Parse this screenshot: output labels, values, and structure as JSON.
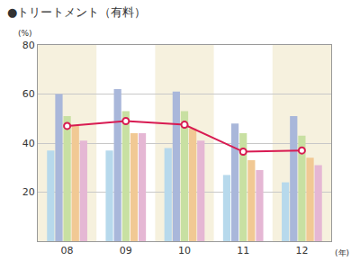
{
  "chart_data": {
    "type": "bar",
    "title": "●トリートメント（有料）",
    "ylabel": "(%)",
    "xlabel": "(年)",
    "categories": [
      "08",
      "09",
      "10",
      "11",
      "12"
    ],
    "series": [
      {
        "type": "bar",
        "color": "#b7d9ec",
        "values": [
          37,
          37,
          38,
          27,
          24
        ]
      },
      {
        "type": "bar",
        "color": "#a9b7da",
        "values": [
          60,
          62,
          61,
          48,
          51
        ]
      },
      {
        "type": "bar",
        "color": "#c8e0a2",
        "values": [
          51,
          53,
          53,
          44,
          43
        ]
      },
      {
        "type": "bar",
        "color": "#f1c994",
        "values": [
          47,
          44,
          46,
          33,
          34
        ]
      },
      {
        "type": "bar",
        "color": "#e5b7d4",
        "values": [
          41,
          44,
          41,
          29,
          31
        ]
      },
      {
        "type": "line",
        "color": "#d81b52",
        "marker": "circle",
        "values": [
          47,
          49,
          47.5,
          36.5,
          37
        ]
      }
    ],
    "ylim": [
      0,
      80
    ],
    "yticks": [
      20,
      40,
      60,
      80
    ],
    "grid": true
  }
}
